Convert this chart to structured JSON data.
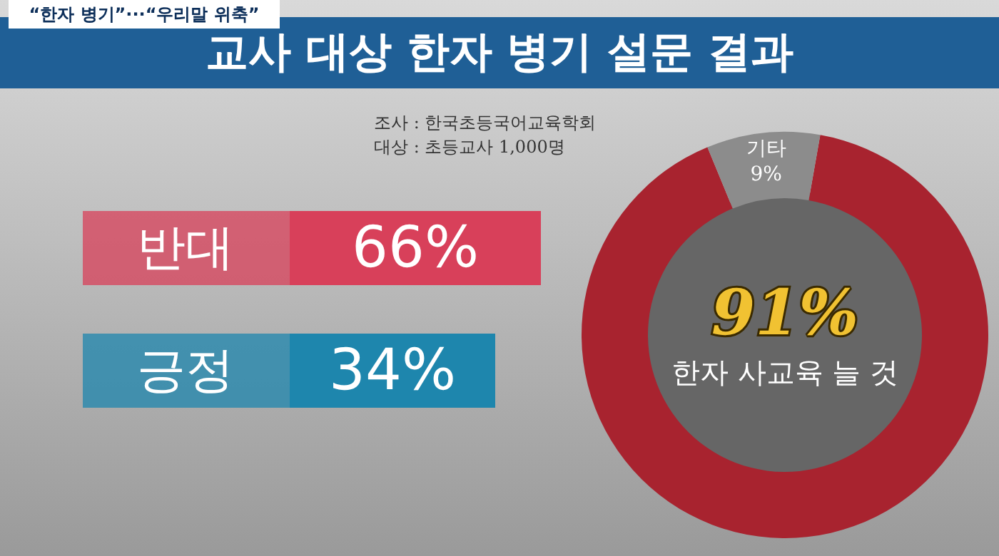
{
  "chart_data": [
    {
      "type": "other",
      "title": "교사 대상 한자 병기 설문 결과",
      "annotations": [
        "“한자 병기”···“우리말 위축”",
        "조사 : 한국초등국어교육학회",
        "대상 : 초등교사 1,000명"
      ],
      "categories": [
        "반대",
        "긍정"
      ],
      "values": [
        66,
        34
      ],
      "value_labels": [
        "66%",
        "34%"
      ],
      "colors": [
        "#d8405a",
        "#1e86ad"
      ]
    },
    {
      "type": "donut",
      "categories": [
        "한자 사교육 늘 것",
        "기타"
      ],
      "values": [
        91,
        9
      ],
      "value_labels": [
        "91%",
        "9%"
      ],
      "colors": [
        "#a8232f",
        "#8c8c8c"
      ]
    }
  ]
}
